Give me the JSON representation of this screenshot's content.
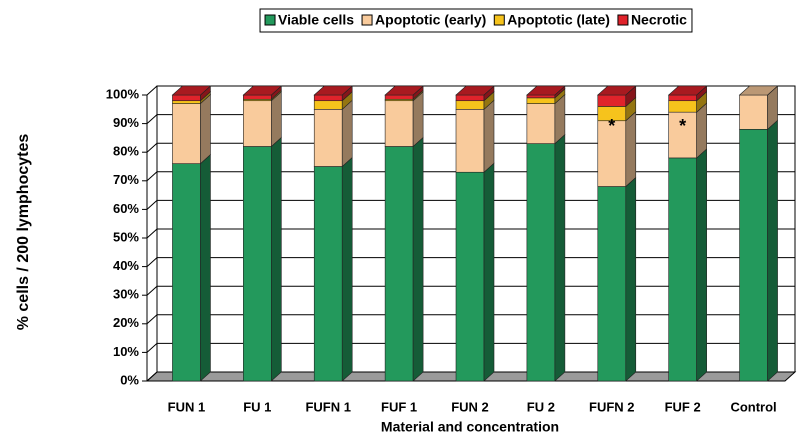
{
  "chart_data": {
    "type": "stacked-bar-3d",
    "x_label": "Material and concentration",
    "y_label": "% cells / 200 lymphocytes",
    "categories": [
      "FUN 1",
      "FU 1",
      "FUFN 1",
      "FUF 1",
      "FUN 2",
      "FU 2",
      "FUFN 2",
      "FUF 2",
      "Control"
    ],
    "series": [
      {
        "name": "Viable cells",
        "color": "#23995c",
        "values": [
          76,
          82,
          75,
          82,
          73,
          83,
          68,
          78,
          88
        ]
      },
      {
        "name": "Apoptotic (early)",
        "color": "#f9cb9c",
        "values": [
          21,
          16,
          20,
          16,
          22,
          14,
          23,
          16,
          12
        ]
      },
      {
        "name": "Apoptotic (late)",
        "color": "#f6c31c",
        "values": [
          1,
          0.5,
          3,
          0.5,
          3,
          2,
          5,
          4,
          0
        ]
      },
      {
        "name": "Necrotic",
        "color": "#e0232b",
        "values": [
          2,
          1.5,
          2,
          1.5,
          2,
          1,
          4,
          2,
          0
        ]
      }
    ],
    "annotations": [
      null,
      null,
      null,
      null,
      null,
      null,
      "*",
      "*",
      null
    ],
    "ylim": [
      0,
      100
    ],
    "yticks": [
      {
        "value": 0,
        "label": "0%"
      },
      {
        "value": 10,
        "label": "10%"
      },
      {
        "value": 20,
        "label": "20%"
      },
      {
        "value": 30,
        "label": "30%"
      },
      {
        "value": 40,
        "label": "40%"
      },
      {
        "value": 50,
        "label": "50%"
      },
      {
        "value": 60,
        "label": "60%"
      },
      {
        "value": 70,
        "label": "70%"
      },
      {
        "value": 80,
        "label": "80%"
      },
      {
        "value": 90,
        "label": "90%"
      },
      {
        "value": 100,
        "label": "100%"
      }
    ],
    "grid": true,
    "legend": "top"
  }
}
